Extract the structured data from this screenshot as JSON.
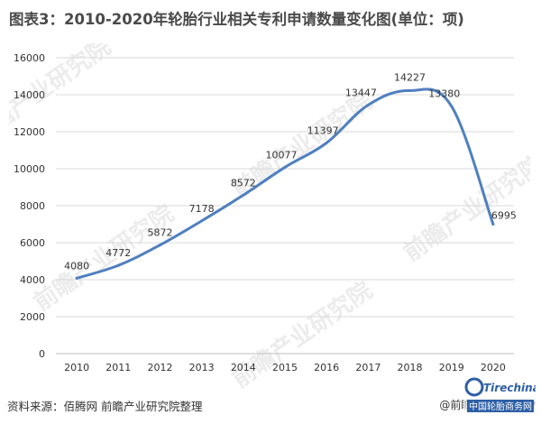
{
  "title": "图表3：2010-2020年轮胎行业相关专利申请数量变化图(单位：项)",
  "footer": {
    "source": "资料来源：佰腾网 前瞻产业研究院整理",
    "brand": "@前瞻经济学人APP",
    "corner_logo_text": "Tirechina",
    "corner_logo_subtext": "中国轮胎商务网"
  },
  "watermark_text": "前瞻产业研究院",
  "colors": {
    "line": "#4f7fc0",
    "grid": "#d9d9d9",
    "label": "#333333",
    "title": "#4a4a4a"
  },
  "chart_data": {
    "type": "line",
    "categories": [
      "2010",
      "2011",
      "2012",
      "2013",
      "2014",
      "2015",
      "2016",
      "2017",
      "2018",
      "2019",
      "2020"
    ],
    "series": [
      {
        "values": [
          4080,
          4772,
          5872,
          7178,
          8572,
          10077,
          11397,
          13447,
          14227,
          13380,
          6995
        ]
      }
    ],
    "data_labels": [
      "4080",
      "4772",
      "5872",
      "7178",
      "8572",
      "10077",
      "11397",
      "13447",
      "14227",
      "13380",
      "6995"
    ],
    "y_ticks": [
      "0",
      "2000",
      "4000",
      "6000",
      "8000",
      "10000",
      "12000",
      "14000",
      "16000"
    ],
    "ylim": [
      0,
      16000
    ],
    "grid": true,
    "smooth": true,
    "legend": "none"
  }
}
